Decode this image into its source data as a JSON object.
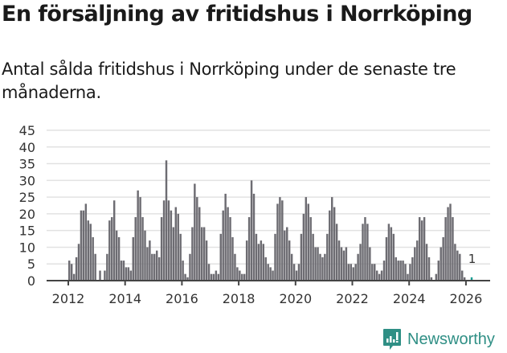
{
  "header": {
    "title": "En försäljning av fritidshus i Norrköping",
    "subtitle": "Antal sålda fritidshus i Norrköping under de senaste tre månaderna."
  },
  "brand": {
    "name": "Newsworthy",
    "color": "#2f8f85"
  },
  "chart_data": {
    "type": "bar",
    "title": "En försäljning av fritidshus i Norrköping",
    "subtitle": "Antal sålda fritidshus i Norrköping under de senaste tre månaderna.",
    "xlabel": "",
    "ylabel": "",
    "ylim": [
      0,
      45
    ],
    "yticks": [
      0,
      5,
      10,
      15,
      20,
      25,
      30,
      35,
      40,
      45
    ],
    "xticks": [
      "2012",
      "2014",
      "2016",
      "2018",
      "2020",
      "2022",
      "2024",
      "2026"
    ],
    "grid": true,
    "legend": null,
    "start": "2012-01",
    "frequency": "monthly",
    "bar_color": "#6d6c72",
    "highlight_color": "#1a9e93",
    "annotation": {
      "label": "1",
      "point": "last"
    },
    "values": [
      6,
      5,
      2,
      7,
      11,
      21,
      21,
      23,
      18,
      17,
      13,
      8,
      0,
      3,
      0,
      3,
      8,
      18,
      19,
      24,
      15,
      13,
      6,
      6,
      4,
      4,
      3,
      13,
      19,
      27,
      25,
      19,
      15,
      10,
      12,
      8,
      8,
      9,
      7,
      19,
      24,
      36,
      24,
      21,
      16,
      22,
      20,
      14,
      6,
      2,
      1,
      8,
      16,
      29,
      25,
      22,
      16,
      16,
      12,
      5,
      2,
      2,
      3,
      2,
      14,
      21,
      26,
      22,
      19,
      13,
      8,
      4,
      3,
      2,
      2,
      12,
      19,
      30,
      26,
      14,
      11,
      12,
      11,
      7,
      5,
      4,
      3,
      14,
      23,
      25,
      24,
      15,
      16,
      12,
      8,
      5,
      3,
      5,
      14,
      20,
      25,
      23,
      19,
      14,
      10,
      10,
      8,
      7,
      8,
      14,
      21,
      25,
      22,
      17,
      12,
      10,
      9,
      10,
      5,
      5,
      4,
      5,
      8,
      11,
      17,
      19,
      17,
      10,
      5,
      5,
      3,
      2,
      3,
      6,
      13,
      17,
      16,
      14,
      7,
      6,
      6,
      6,
      5,
      2,
      5,
      7,
      10,
      12,
      19,
      18,
      19,
      11,
      7,
      1,
      0,
      2,
      6,
      10,
      13,
      19,
      22,
      23,
      19,
      11,
      9,
      8,
      3,
      1,
      0,
      0,
      1
    ]
  },
  "axes": {
    "y_ticks": [
      "45",
      "40",
      "35",
      "30",
      "25",
      "20",
      "15",
      "10",
      "5",
      "0"
    ],
    "x_ticks": [
      "2012",
      "2014",
      "2016",
      "2018",
      "2020",
      "2022",
      "2024",
      "2026"
    ]
  }
}
